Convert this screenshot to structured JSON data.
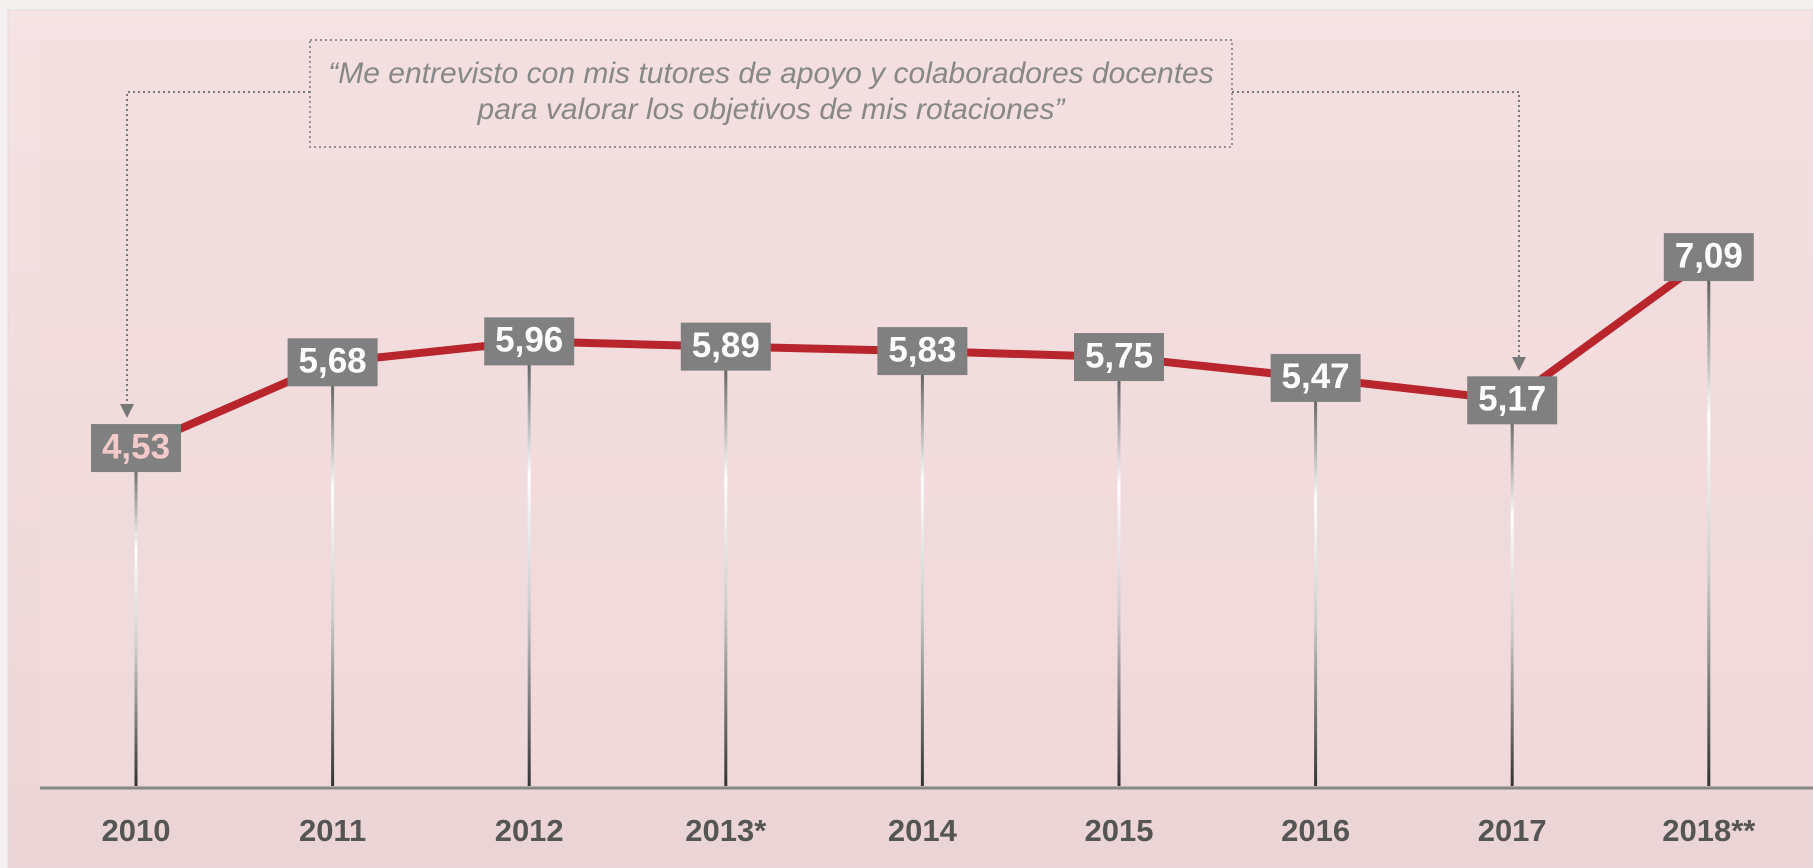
{
  "chart_data": {
    "type": "line",
    "annotation": [
      "“Me entrevisto con mis tutores de apoyo y colaboradores docentes",
      "para valorar los objetivos de mis rotaciones”"
    ],
    "categories": [
      "2010",
      "2011",
      "2012",
      "2013*",
      "2014",
      "2015",
      "2016",
      "2017",
      "2018**"
    ],
    "series": [
      {
        "color": "#b8252d",
        "values": [
          4.53,
          5.68,
          5.96,
          5.89,
          5.83,
          5.75,
          5.47,
          5.17,
          7.09
        ],
        "value_labels": [
          "4,53",
          "5,68",
          "5,96",
          "5,89",
          "5,83",
          "5,75",
          "5,47",
          "5,17",
          "7,09"
        ]
      }
    ],
    "ylim": [
      0,
      10
    ]
  }
}
